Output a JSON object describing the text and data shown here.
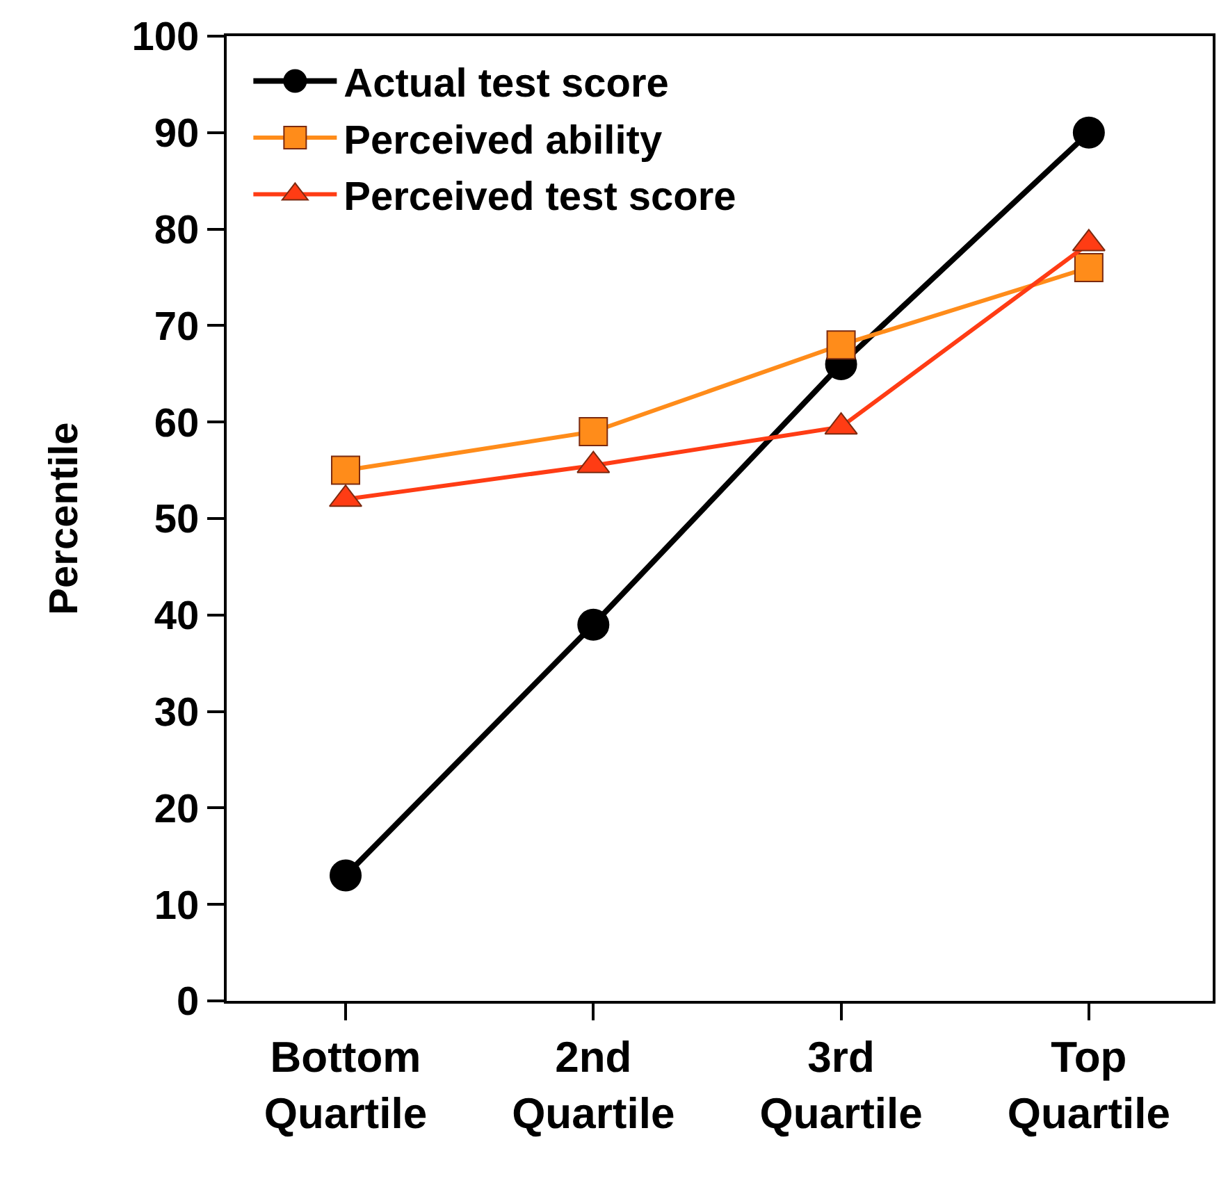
{
  "chart_data": {
    "type": "line",
    "ylabel": "Percentile",
    "categories": [
      "Bottom Quartile",
      "2nd Quartile",
      "3rd Quartile",
      "Top Quartile"
    ],
    "series": [
      {
        "name": "Actual test score",
        "color": "#000000",
        "marker": "circle",
        "values": [
          13,
          39,
          66,
          90
        ]
      },
      {
        "name": "Perceived ability",
        "color": "#ff8c1a",
        "marker": "square",
        "values": [
          55,
          59,
          68,
          76
        ]
      },
      {
        "name": "Perceived test score",
        "color": "#ff3c14",
        "marker": "triangle",
        "values": [
          52,
          55.5,
          59.5,
          78.5
        ]
      }
    ],
    "ylim": [
      0,
      100
    ],
    "yticks": [
      0,
      10,
      20,
      30,
      40,
      50,
      60,
      70,
      80,
      90,
      100
    ],
    "grid": false,
    "legend": "top left",
    "line_style": "solid"
  }
}
